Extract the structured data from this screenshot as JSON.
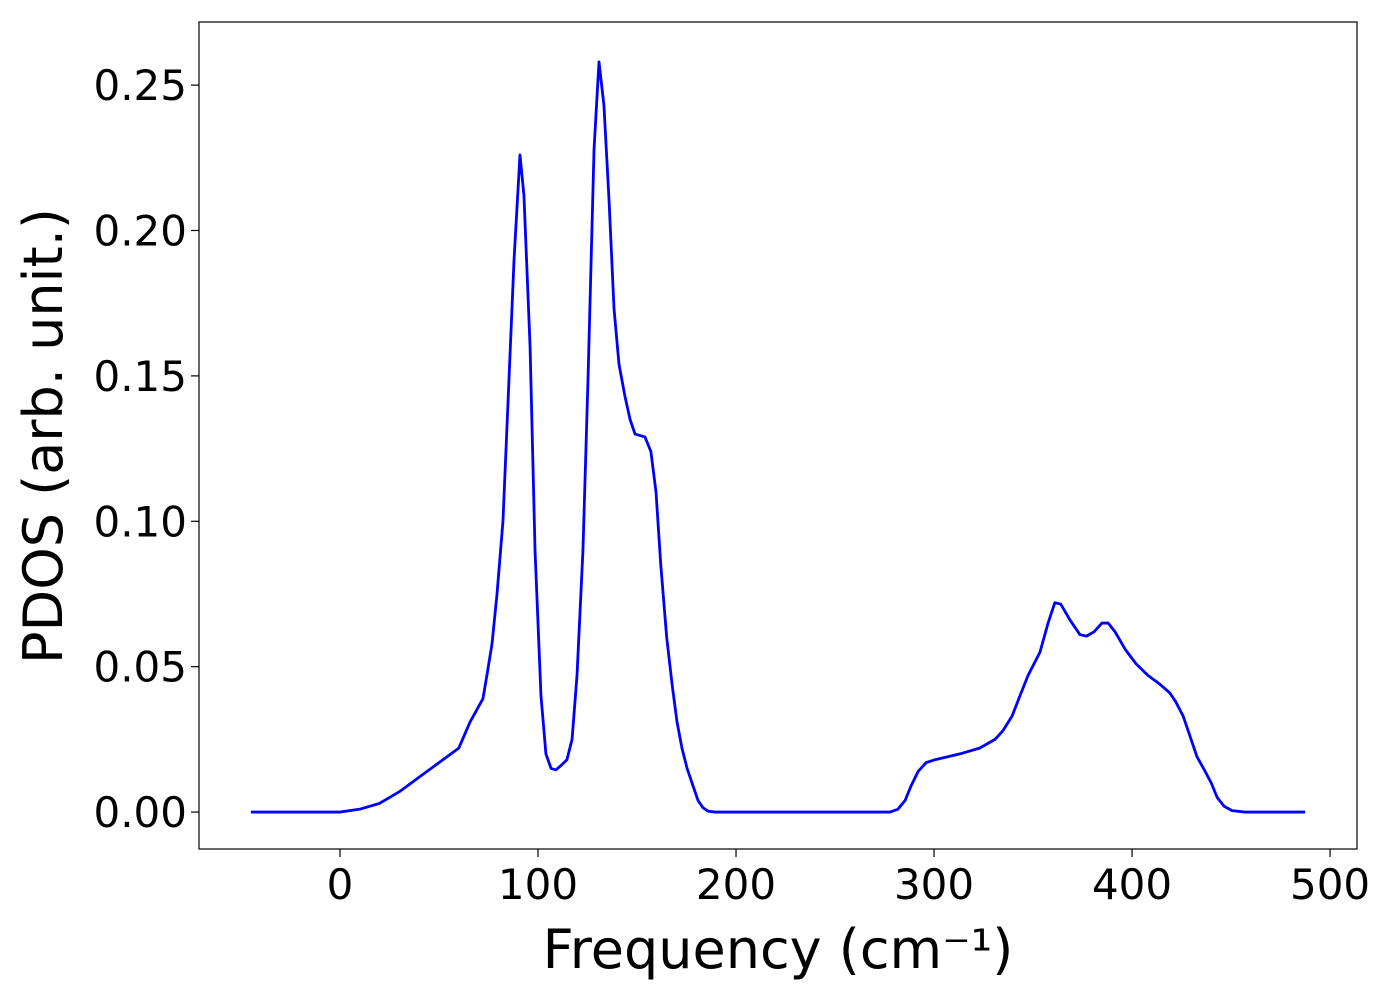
{
  "chart_data": {
    "type": "line",
    "xlabel": "Frequency (cm⁻¹)",
    "ylabel": "PDOS (arb. unit.)",
    "xlim": [
      -71.2,
      513.6
    ],
    "ylim": [
      -0.0127,
      0.2717
    ],
    "xticks": [
      0,
      100,
      200,
      300,
      400,
      500
    ],
    "yticks": [
      {
        "value": 0,
        "label": "0.00"
      },
      {
        "value": 0.05,
        "label": "0.05"
      },
      {
        "value": 0.1,
        "label": "0.10"
      },
      {
        "value": 0.15,
        "label": "0.15"
      },
      {
        "value": 0.2,
        "label": "0.20"
      },
      {
        "value": 0.25,
        "label": "0.25"
      }
    ],
    "grid": false,
    "x": [
      -45,
      0,
      10,
      20,
      30,
      40,
      50,
      60,
      65.7,
      72.2,
      74.2,
      76.8,
      79.3,
      82.3,
      84.8,
      87.9,
      90.9,
      92.9,
      96,
      98.5,
      101.5,
      104,
      106.6,
      109,
      111.6,
      114.6,
      117.2,
      119.7,
      122.7,
      125.3,
      128.3,
      130.8,
      133.3,
      135.9,
      138.4,
      140.9,
      143.9,
      146.5,
      149,
      154,
      157,
      159.6,
      162,
      165,
      167.7,
      170.2,
      172.7,
      175.3,
      178.3,
      180.8,
      183.3,
      185.9,
      189.4,
      277.8,
      281.8,
      285.4,
      288.4,
      292,
      296,
      300.5,
      313,
      323,
      330.8,
      334.8,
      339.4,
      343.4,
      347.5,
      353.5,
      357.6,
      361,
      364,
      368.7,
      373.7,
      377,
      380.8,
      384.8,
      387.9,
      391.4,
      396.5,
      402,
      408,
      414,
      419,
      422,
      425.8,
      429.3,
      432.8,
      436.9,
      440,
      443,
      446.5,
      450.5,
      457,
      487.4
    ],
    "series": [
      {
        "name": "PDOS",
        "color": "#0000ff",
        "values": [
          0,
          0,
          0.001,
          0.003,
          0.007,
          0.012,
          0.017,
          0.022,
          0.031,
          0.039,
          0.047,
          0.058,
          0.075,
          0.1,
          0.14,
          0.19,
          0.226,
          0.212,
          0.16,
          0.09,
          0.04,
          0.02,
          0.015,
          0.0145,
          0.016,
          0.018,
          0.025,
          0.047,
          0.09,
          0.15,
          0.228,
          0.258,
          0.243,
          0.21,
          0.173,
          0.154,
          0.143,
          0.135,
          0.13,
          0.129,
          0.124,
          0.11,
          0.085,
          0.06,
          0.044,
          0.031,
          0.022,
          0.015,
          0.009,
          0.004,
          0.0015,
          0.0003,
          0,
          0,
          0.001,
          0.004,
          0.009,
          0.014,
          0.017,
          0.018,
          0.02,
          0.022,
          0.025,
          0.028,
          0.033,
          0.04,
          0.047,
          0.055,
          0.065,
          0.072,
          0.0715,
          0.066,
          0.061,
          0.0605,
          0.062,
          0.065,
          0.065,
          0.062,
          0.056,
          0.051,
          0.047,
          0.044,
          0.041,
          0.038,
          0.033,
          0.026,
          0.019,
          0.014,
          0.01,
          0.005,
          0.002,
          0.0005,
          0,
          0
        ]
      }
    ]
  }
}
